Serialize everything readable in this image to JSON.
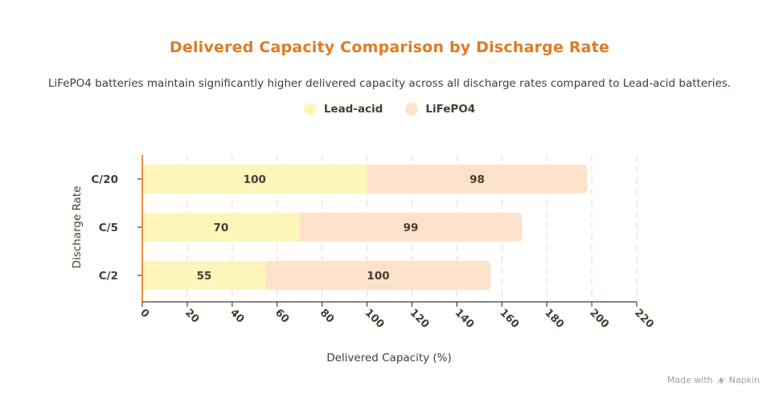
{
  "chart_data": {
    "type": "bar",
    "stacked": true,
    "orientation": "horizontal",
    "title": "Delivered Capacity Comparison by Discharge Rate",
    "subtitle": "LiFePO4 batteries maintain significantly higher delivered capacity across all discharge rates compared to Lead-acid batteries.",
    "categories": [
      "C/20",
      "C/5",
      "C/2"
    ],
    "series": [
      {
        "name": "Lead-acid",
        "color": "#fdf6b8",
        "values": [
          100,
          70,
          55
        ]
      },
      {
        "name": "LiFePO4",
        "color": "#fde2cb",
        "values": [
          98,
          99,
          100
        ]
      }
    ],
    "xlabel": "Delivered Capacity (%)",
    "ylabel": "Discharge Rate",
    "xlim": [
      0,
      220
    ],
    "xticks": [
      "0",
      "20",
      "40",
      "60",
      "80",
      "100",
      "120",
      "140",
      "160",
      "180",
      "200",
      "220"
    ],
    "grid": true,
    "legend_position": "top-center"
  },
  "watermark": {
    "prefix": "Made with",
    "brand": "Napkin"
  }
}
